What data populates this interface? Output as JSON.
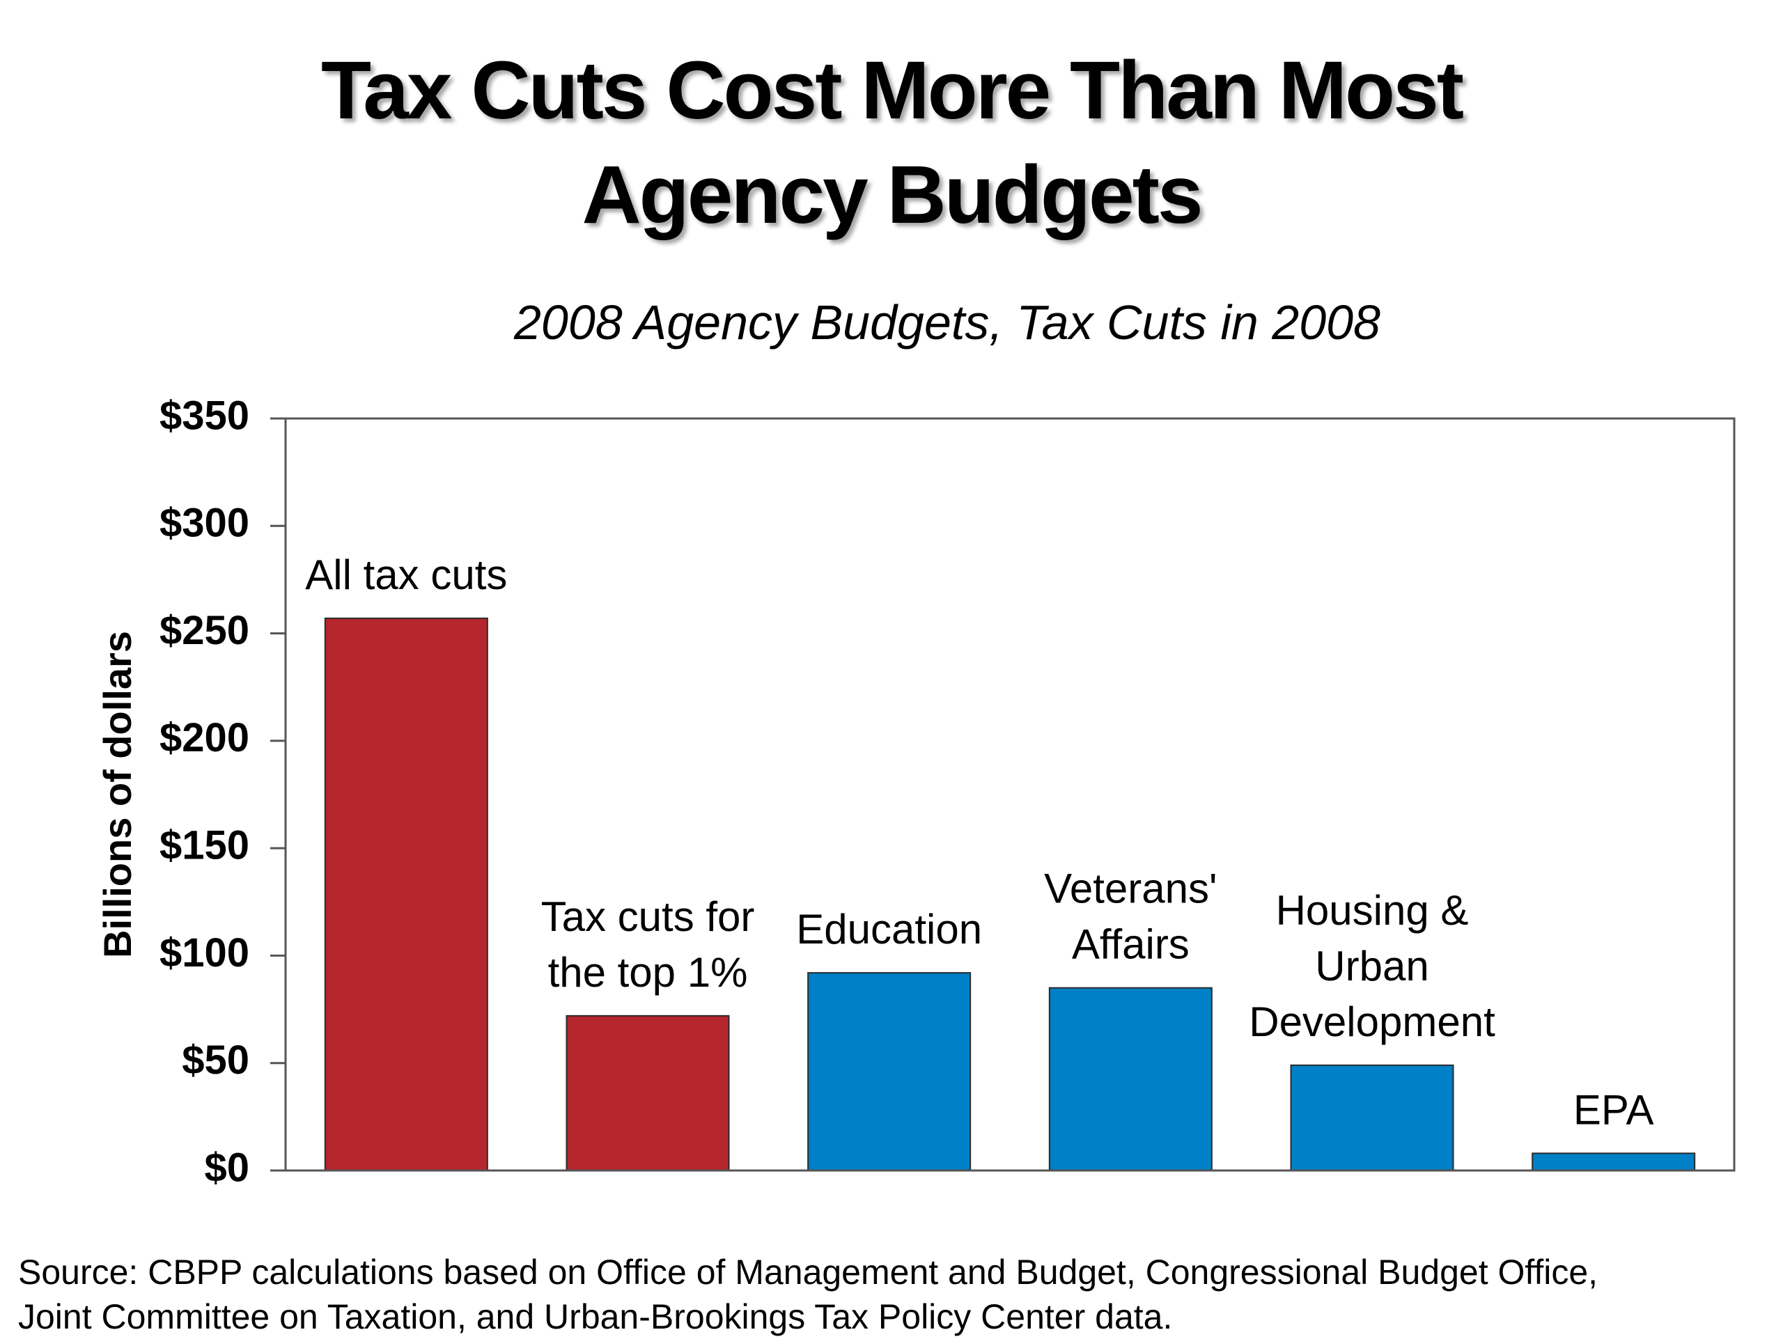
{
  "title_lines": [
    "Tax Cuts Cost More Than Most",
    "Agency Budgets"
  ],
  "source_lines": [
    "Source: CBPP calculations based on Office of Management and Budget, Congressional Budget Office,",
    "Joint Committee on Taxation, and Urban-Brookings Tax Policy Center data."
  ],
  "chart_data": {
    "type": "bar",
    "title": "",
    "subtitle": "2008 Agency Budgets, Tax Cuts in 2008",
    "xlabel": "",
    "ylabel": "Billions of dollars",
    "ylim": [
      0,
      350
    ],
    "yticks": [
      0,
      50,
      100,
      150,
      200,
      250,
      300,
      350
    ],
    "ytick_labels": [
      "$0",
      "$50",
      "$100",
      "$150",
      "$200",
      "$250",
      "$300",
      "$350"
    ],
    "categories": [
      [
        "All tax cuts"
      ],
      [
        "Tax cuts for",
        "the top 1%"
      ],
      [
        "Education"
      ],
      [
        "Veterans'",
        "Affairs"
      ],
      [
        "Housing &",
        "Urban",
        "Development"
      ],
      [
        "EPA"
      ]
    ],
    "values": [
      257,
      72,
      92,
      85,
      49,
      8
    ],
    "bar_colors": [
      "#b5272d",
      "#b5272d",
      "#0080c6",
      "#0080c6",
      "#0080c6",
      "#0080c6"
    ],
    "grid": false,
    "legend": "none"
  }
}
